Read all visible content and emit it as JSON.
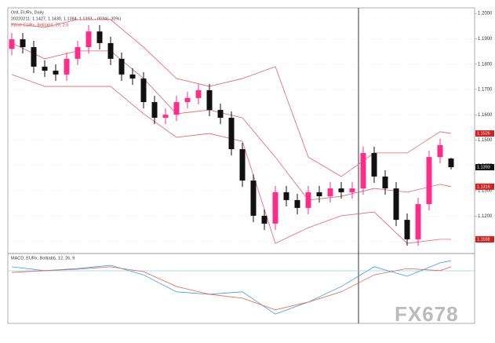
{
  "chart_data": {
    "type": "candlestick",
    "legend_lines": [
      "Ord, EURx, Daily",
      "20220211: 1.1427, 1.1430, 1.1384, 1.1393, -.0034(-.30%)",
      "Band: EURx, Boll(abl), 20, 2.0"
    ],
    "macd_legend": "MACD, EURx, Boll(abl), 12, 26, 9",
    "watermark": "FX678",
    "up_color": "#ff2d8a",
    "down_color": "#111111",
    "band_color": "#e8606a",
    "open": [
      1.186,
      1.1898,
      1.1867,
      1.179,
      1.1774,
      1.1759,
      1.1821,
      1.1867,
      1.1929,
      1.1883,
      1.1821,
      1.1759,
      1.1743,
      1.165,
      1.1588,
      1.16,
      1.165,
      1.1666,
      1.1697,
      1.1619,
      1.1588,
      1.1464,
      1.134,
      1.1201,
      1.117,
      1.1294,
      1.1263,
      1.1232,
      1.1294,
      1.1278,
      1.1309,
      1.1294,
      1.1309,
      1.1449,
      1.1356,
      1.1309,
      1.1185,
      1.1108,
      1.1247,
      1.1433,
      1.1427
    ],
    "high": [
      1.1923,
      1.1923,
      1.1892,
      1.1815,
      1.1799,
      1.1846,
      1.1892,
      1.1954,
      1.1954,
      1.1908,
      1.1846,
      1.1784,
      1.1768,
      1.1675,
      1.1625,
      1.1675,
      1.1691,
      1.1722,
      1.1722,
      1.1644,
      1.1613,
      1.1489,
      1.1365,
      1.1226,
      1.1319,
      1.1319,
      1.1288,
      1.1319,
      1.1319,
      1.1334,
      1.1334,
      1.1334,
      1.1474,
      1.1474,
      1.1381,
      1.1334,
      1.121,
      1.1272,
      1.1458,
      1.1505,
      1.143
    ],
    "low": [
      1.1835,
      1.1842,
      1.1765,
      1.1749,
      1.1734,
      1.1734,
      1.1796,
      1.1842,
      1.1858,
      1.1796,
      1.1734,
      1.1718,
      1.1625,
      1.1563,
      1.1563,
      1.1575,
      1.1625,
      1.1641,
      1.1594,
      1.1563,
      1.1439,
      1.1315,
      1.1176,
      1.1145,
      1.1145,
      1.1238,
      1.1207,
      1.1207,
      1.1253,
      1.1253,
      1.1269,
      1.1269,
      1.1284,
      1.1331,
      1.1284,
      1.116,
      1.1083,
      1.1083,
      1.1222,
      1.1408,
      1.1384
    ],
    "close": [
      1.1898,
      1.1867,
      1.179,
      1.1774,
      1.1759,
      1.1821,
      1.1867,
      1.1929,
      1.1883,
      1.1821,
      1.1759,
      1.1743,
      1.165,
      1.1588,
      1.16,
      1.165,
      1.1666,
      1.1697,
      1.1619,
      1.1588,
      1.1464,
      1.134,
      1.1201,
      1.117,
      1.1294,
      1.1263,
      1.1232,
      1.1294,
      1.1278,
      1.1309,
      1.1294,
      1.1309,
      1.1449,
      1.1356,
      1.1309,
      1.1185,
      1.1108,
      1.1247,
      1.1433,
      1.148,
      1.1393
    ],
    "ylim": [
      1.1055,
      1.2016
    ],
    "yticks": [
      {
        "value": 1.11,
        "label": "1.1100"
      },
      {
        "value": 1.12,
        "label": "1.1200"
      },
      {
        "value": 1.13,
        "label": "1.1300"
      },
      {
        "value": 1.14,
        "label": "1.1400"
      },
      {
        "value": 1.15,
        "label": "1.1500"
      },
      {
        "value": 1.16,
        "label": "1.1600"
      },
      {
        "value": 1.17,
        "label": "1.1700"
      },
      {
        "value": 1.18,
        "label": "1.1800"
      },
      {
        "value": 1.19,
        "label": "1.1900"
      },
      {
        "value": 1.2,
        "label": "1.2000"
      }
    ],
    "bands": {
      "x": [
        0,
        3,
        6,
        9,
        12,
        15,
        18,
        21,
        24,
        27,
        30,
        33,
        36,
        39,
        40
      ],
      "upper": [
        1.196,
        1.1945,
        1.1976,
        1.1976,
        1.1867,
        1.1743,
        1.1712,
        1.1743,
        1.179,
        1.1433,
        1.1356,
        1.1449,
        1.1449,
        1.1533,
        1.1526
      ],
      "mid": [
        1.1883,
        1.1821,
        1.1852,
        1.1852,
        1.1743,
        1.1604,
        1.1619,
        1.1588,
        1.1433,
        1.1263,
        1.1278,
        1.1309,
        1.1294,
        1.1325,
        1.1316
      ],
      "lower": [
        1.1759,
        1.1712,
        1.1712,
        1.1712,
        1.1604,
        1.1511,
        1.1526,
        1.1495,
        1.1092,
        1.1154,
        1.1201,
        1.1216,
        1.1092,
        1.1108,
        1.1108
      ]
    },
    "macd": {
      "ylim": [
        -0.012,
        0.008
      ],
      "x": [
        0,
        3,
        6,
        9,
        12,
        15,
        18,
        21,
        24,
        27,
        30,
        33,
        36,
        39,
        40
      ],
      "macd_color": "#3aa0e8",
      "signal_color": "#e8604a",
      "macd": [
        0.0047,
        0.0036,
        0.0042,
        0.0051,
        0.0024,
        -0.0024,
        -0.0031,
        -0.0024,
        -0.0087,
        -0.0053,
        -0.0009,
        0.0047,
        0.002,
        0.0058,
        0.0064
      ],
      "signal": [
        0.0031,
        0.0036,
        0.004,
        0.0047,
        0.0033,
        -0.0009,
        -0.0031,
        -0.0042,
        -0.0075,
        -0.0053,
        -0.0024,
        0.0024,
        0.0042,
        0.0036,
        0.0047
      ]
    }
  }
}
